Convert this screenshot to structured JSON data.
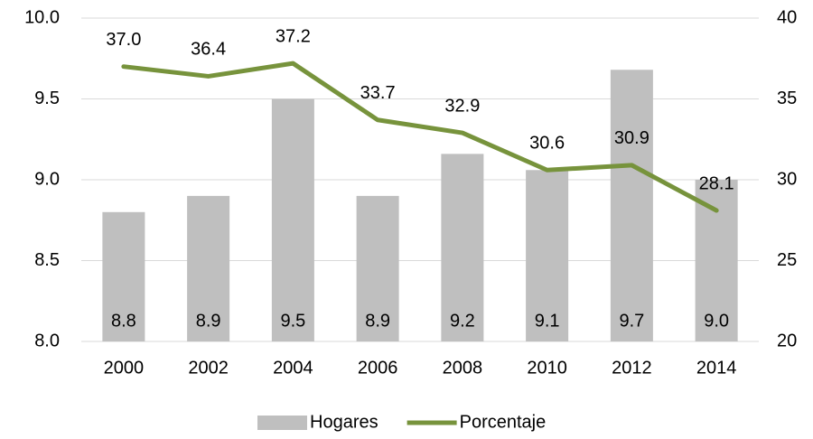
{
  "chart_data": {
    "type": "combo",
    "categories": [
      "2000",
      "2002",
      "2004",
      "2006",
      "2008",
      "2010",
      "2012",
      "2014"
    ],
    "series": [
      {
        "name": "Hogares",
        "type": "bar",
        "color": "#bfbfbf",
        "values": [
          8.8,
          8.9,
          9.5,
          8.9,
          9.16,
          9.06,
          9.68,
          9.0
        ],
        "value_labels": [
          "8.8",
          "8.9",
          "9.5",
          "8.9",
          "9.2",
          "9.1",
          "9.7",
          "9.0"
        ]
      },
      {
        "name": "Porcentaje",
        "type": "line",
        "axis": "y2",
        "color": "#77933c",
        "values": [
          37.0,
          36.4,
          37.2,
          33.7,
          32.9,
          30.6,
          30.9,
          28.1
        ],
        "value_labels": [
          "37.0",
          "36.4",
          "37.2",
          "33.7",
          "32.9",
          "30.6",
          "30.9",
          "28.1"
        ]
      }
    ],
    "ylim": [
      8.0,
      10.0
    ],
    "yticks": [
      {
        "value": 8.0,
        "label": "8.0"
      },
      8.5,
      {
        "value": 9.0,
        "label": "9.0"
      },
      9.5,
      {
        "value": 10.0,
        "label": "10.0"
      }
    ],
    "y2lim": [
      20,
      40
    ],
    "y2ticks": [
      20,
      25,
      30,
      35,
      40
    ],
    "grid": true,
    "legend": "bottom"
  }
}
